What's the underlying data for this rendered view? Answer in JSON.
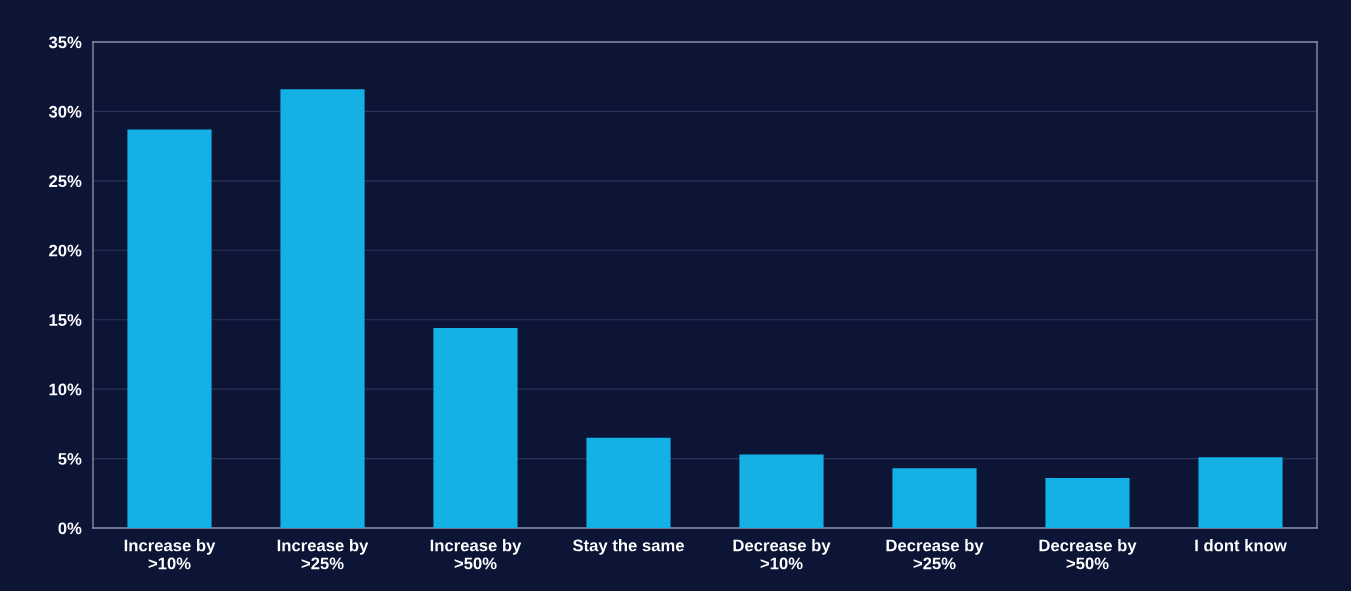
{
  "chart_data": {
    "type": "bar",
    "categories": [
      "Increase by\n>10%",
      "Increase by\n>25%",
      "Increase by\n>50%",
      "Stay the same",
      "Decrease by\n>10%",
      "Decrease by\n>25%",
      "Decrease by\n>50%",
      "I dont know"
    ],
    "values": [
      28.7,
      31.6,
      14.4,
      6.5,
      5.3,
      4.3,
      3.6,
      5.1
    ],
    "color": "#13b1e6",
    "ylim": [
      0,
      35
    ],
    "yticks": [
      {
        "value": 0,
        "label": "0%"
      },
      {
        "value": 5,
        "label": "5%"
      },
      {
        "value": 10,
        "label": "10%"
      },
      {
        "value": 15,
        "label": "15%"
      },
      {
        "value": 20,
        "label": "20%"
      },
      {
        "value": 25,
        "label": "25%"
      },
      {
        "value": 30,
        "label": "30%"
      },
      {
        "value": 35,
        "label": "35%"
      }
    ],
    "grid": "y"
  }
}
